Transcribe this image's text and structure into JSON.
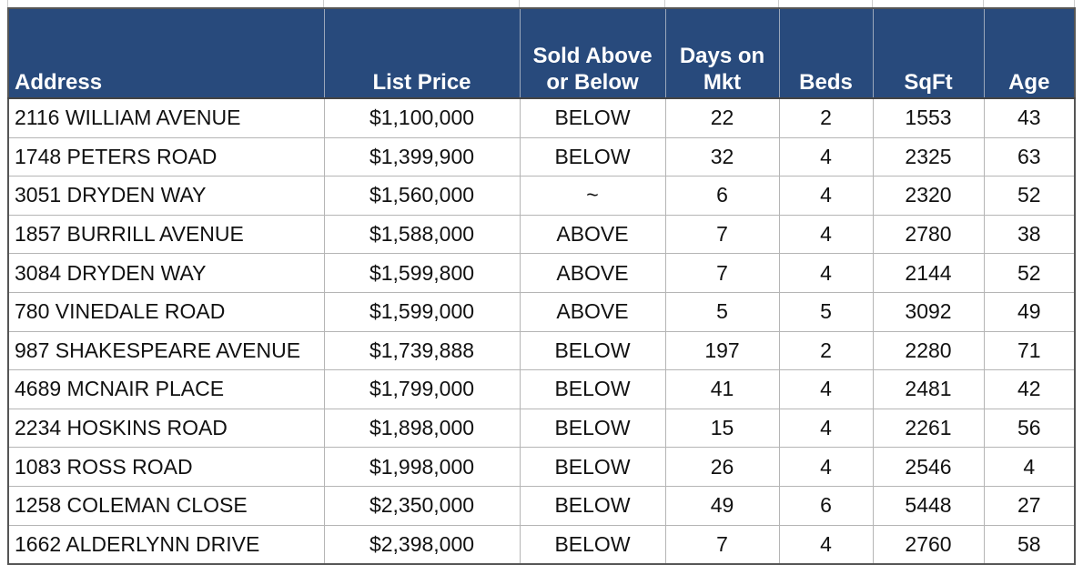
{
  "table": {
    "headers": [
      "Address",
      "List Price",
      "Sold Above or Below",
      "Days on Mkt",
      "Beds",
      "SqFt",
      "Age"
    ],
    "rows": [
      [
        "2116 WILLIAM AVENUE",
        "$1,100,000",
        "BELOW",
        "22",
        "2",
        "1553",
        "43"
      ],
      [
        "1748 PETERS ROAD",
        "$1,399,900",
        "BELOW",
        "32",
        "4",
        "2325",
        "63"
      ],
      [
        "3051 DRYDEN WAY",
        "$1,560,000",
        "~",
        "6",
        "4",
        "2320",
        "52"
      ],
      [
        "1857 BURRILL AVENUE",
        "$1,588,000",
        "ABOVE",
        "7",
        "4",
        "2780",
        "38"
      ],
      [
        "3084 DRYDEN WAY",
        "$1,599,800",
        "ABOVE",
        "7",
        "4",
        "2144",
        "52"
      ],
      [
        "780 VINEDALE ROAD",
        "$1,599,000",
        "ABOVE",
        "5",
        "5",
        "3092",
        "49"
      ],
      [
        "987 SHAKESPEARE AVENUE",
        "$1,739,888",
        "BELOW",
        "197",
        "2",
        "2280",
        "71"
      ],
      [
        "4689 MCNAIR PLACE",
        "$1,799,000",
        "BELOW",
        "41",
        "4",
        "2481",
        "42"
      ],
      [
        "2234 HOSKINS ROAD",
        "$1,898,000",
        "BELOW",
        "15",
        "4",
        "2261",
        "56"
      ],
      [
        "1083 ROSS ROAD",
        "$1,998,000",
        "BELOW",
        "26",
        "4",
        "2546",
        "4"
      ],
      [
        "1258 COLEMAN CLOSE",
        "$2,350,000",
        "BELOW",
        "49",
        "6",
        "5448",
        "27"
      ],
      [
        "1662 ALDERLYNN DRIVE",
        "$2,398,000",
        "BELOW",
        "7",
        "4",
        "2760",
        "58"
      ]
    ]
  }
}
